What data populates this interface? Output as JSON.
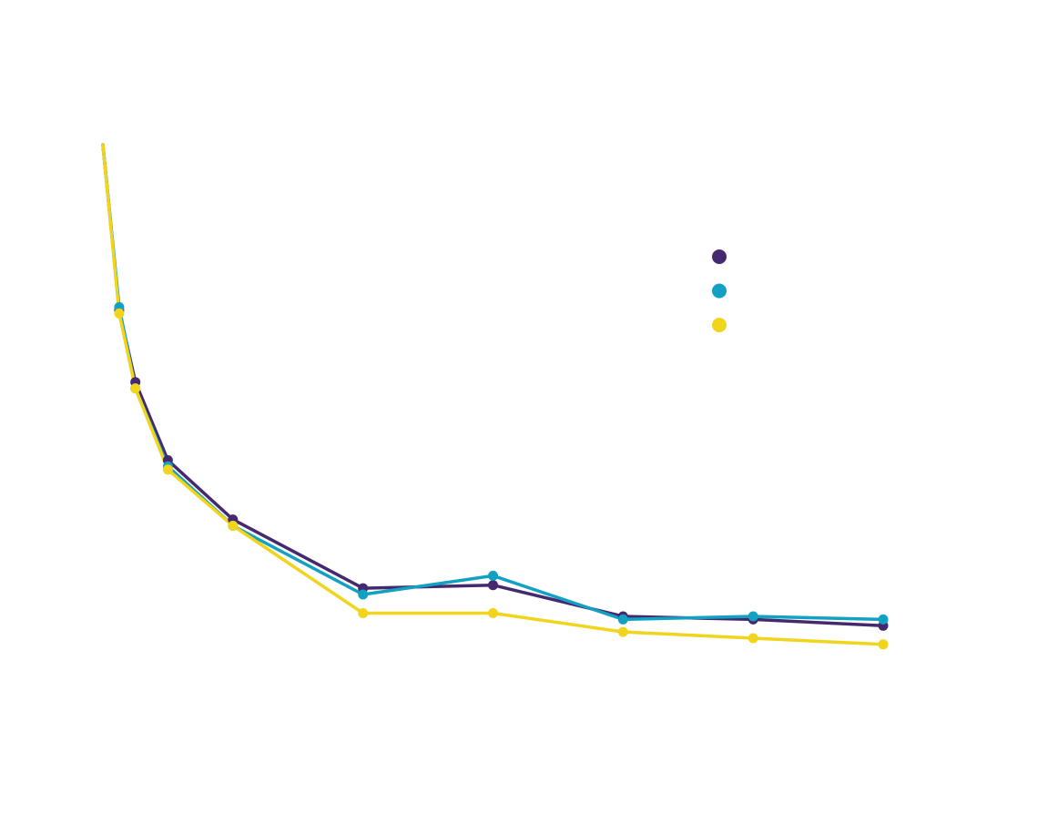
{
  "chart_data": {
    "type": "line",
    "x": [
      0,
      1,
      2,
      4,
      8,
      16,
      24,
      32,
      40,
      48
    ],
    "xlim": [
      0,
      48
    ],
    "ylim": [
      0,
      1.0
    ],
    "grid": false,
    "legend_placement": "right",
    "series": [
      {
        "color": "#45296e",
        "values": [
          0.895,
          0.63,
          0.515,
          0.39,
          0.295,
          0.185,
          0.19,
          0.14,
          0.135,
          0.125
        ]
      },
      {
        "color": "#12a0c3",
        "values": [
          0.895,
          0.635,
          0.505,
          0.38,
          0.285,
          0.175,
          0.205,
          0.135,
          0.14,
          0.135
        ]
      },
      {
        "color": "#f1d51d",
        "values": [
          0.895,
          0.625,
          0.505,
          0.375,
          0.285,
          0.145,
          0.145,
          0.115,
          0.105,
          0.095
        ]
      }
    ]
  }
}
